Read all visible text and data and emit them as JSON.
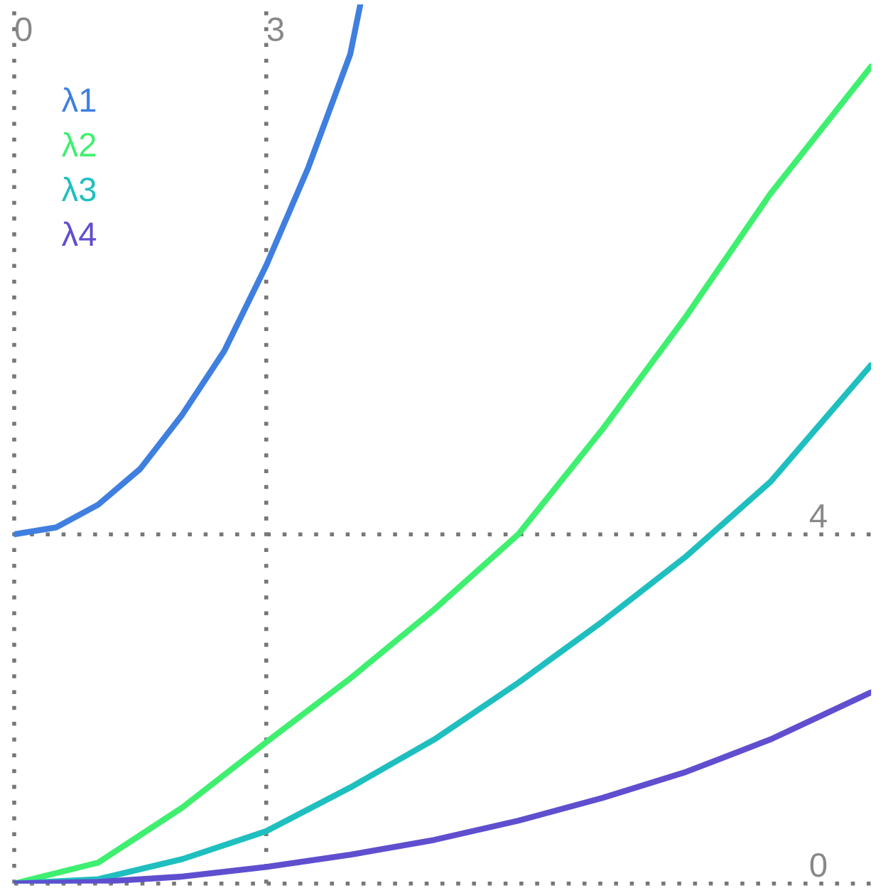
{
  "chart_data": {
    "type": "line",
    "xlim": [
      0,
      10.2
    ],
    "ylim": [
      0,
      10.07
    ],
    "xticks": [
      0,
      3
    ],
    "yticks": [
      0,
      4
    ],
    "grid": true,
    "legend": "top left",
    "marker": "none",
    "line_style": "solid",
    "series": [
      {
        "name": "λ1",
        "color": "#3f7fdf",
        "x": [
          0,
          0.5,
          1,
          1.5,
          2,
          2.5,
          3,
          3.5,
          4,
          4.12
        ],
        "values": [
          4,
          4.08,
          4.34,
          4.75,
          5.37,
          6.1,
          7.08,
          8.2,
          9.5,
          10.07
        ]
      },
      {
        "name": "λ2",
        "color": "#3fef6f",
        "x": [
          0,
          1,
          2,
          3,
          4,
          5,
          6,
          7,
          8,
          9,
          10.2
        ],
        "values": [
          0,
          0.24,
          0.87,
          1.62,
          2.35,
          3.14,
          4.0,
          5.2,
          6.5,
          7.9,
          9.36
        ]
      },
      {
        "name": "λ3",
        "color": "#1fbfbf",
        "x": [
          0,
          1,
          2,
          3,
          4,
          5,
          6,
          7,
          8,
          9,
          10.2
        ],
        "values": [
          0,
          0.05,
          0.28,
          0.6,
          1.1,
          1.65,
          2.3,
          3.0,
          3.75,
          4.6,
          5.94
        ]
      },
      {
        "name": "λ4",
        "color": "#5f4fcf",
        "x": [
          0,
          1,
          2,
          3,
          4,
          5,
          6,
          7,
          8,
          9,
          10.2
        ],
        "values": [
          0,
          0.02,
          0.08,
          0.19,
          0.33,
          0.5,
          0.72,
          0.98,
          1.28,
          1.65,
          2.19
        ]
      }
    ]
  }
}
